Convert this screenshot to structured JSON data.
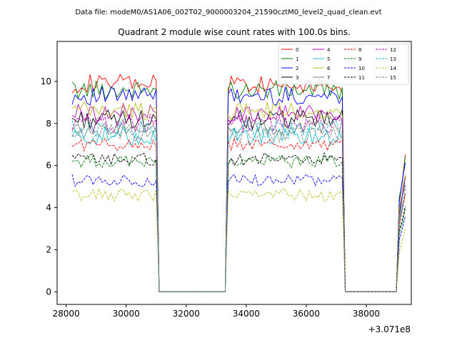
{
  "chart_data": {
    "type": "line",
    "header_text": "Data file: modeM0/AS1A06_002T02_9000003204_21590cztM0_level2_quad_clean.evt",
    "title": "Quadrant 2 module wise count rates with 100.0s bins.",
    "xlabel": "",
    "ylabel": "",
    "offset_label": "+3.071e8",
    "xlim": [
      27700,
      39500
    ],
    "ylim": [
      -0.6,
      11.9
    ],
    "x_ticks": [
      28000,
      30000,
      32000,
      34000,
      36000,
      38000
    ],
    "x_tick_labels": [
      "28000",
      "30000",
      "32000",
      "34000",
      "36000",
      "38000"
    ],
    "y_ticks": [
      0,
      2,
      4,
      6,
      8,
      10
    ],
    "y_tick_labels": [
      "0",
      "2",
      "4",
      "6",
      "8",
      "10"
    ],
    "grid": false,
    "legend_position": "top-right",
    "legend_columns": 4,
    "segments": [
      {
        "start": 28200,
        "end": 31000
      },
      {
        "start": 33400,
        "end": 37200
      },
      {
        "start": 39100,
        "end": 39300
      }
    ],
    "series": [
      {
        "name": "0",
        "color": "#ff0000",
        "dash": "solid",
        "level_on": 9.9
      },
      {
        "name": "1",
        "color": "#008000",
        "dash": "solid",
        "level_on": 9.6
      },
      {
        "name": "2",
        "color": "#0000ff",
        "dash": "solid",
        "level_on": 9.3
      },
      {
        "name": "3",
        "color": "#000000",
        "dash": "solid",
        "level_on": 8.2
      },
      {
        "name": "4",
        "color": "#bf00bf",
        "dash": "solid",
        "level_on": 8.5
      },
      {
        "name": "5",
        "color": "#17becf",
        "dash": "solid",
        "level_on": 7.4
      },
      {
        "name": "6",
        "color": "#bcbd22",
        "dash": "solid",
        "level_on": 8.6
      },
      {
        "name": "7",
        "color": "#7f7f7f",
        "dash": "solid",
        "level_on": 7.9
      },
      {
        "name": "8",
        "color": "#ff0000",
        "dash": "dashed",
        "level_on": 7.0
      },
      {
        "name": "9",
        "color": "#008000",
        "dash": "dashed",
        "level_on": 6.2
      },
      {
        "name": "10",
        "color": "#0000ff",
        "dash": "dashed",
        "level_on": 5.3
      },
      {
        "name": "11",
        "color": "#000000",
        "dash": "dashed",
        "level_on": 6.3
      },
      {
        "name": "12",
        "color": "#bf00bf",
        "dash": "dashed",
        "level_on": 8.0
      },
      {
        "name": "13",
        "color": "#17becf",
        "dash": "dashed",
        "level_on": 7.7
      },
      {
        "name": "14",
        "color": "#bcbd22",
        "dash": "dashed",
        "level_on": 4.6
      },
      {
        "name": "15",
        "color": "#7f7f7f",
        "dash": "dashed",
        "level_on": 7.5
      }
    ]
  }
}
